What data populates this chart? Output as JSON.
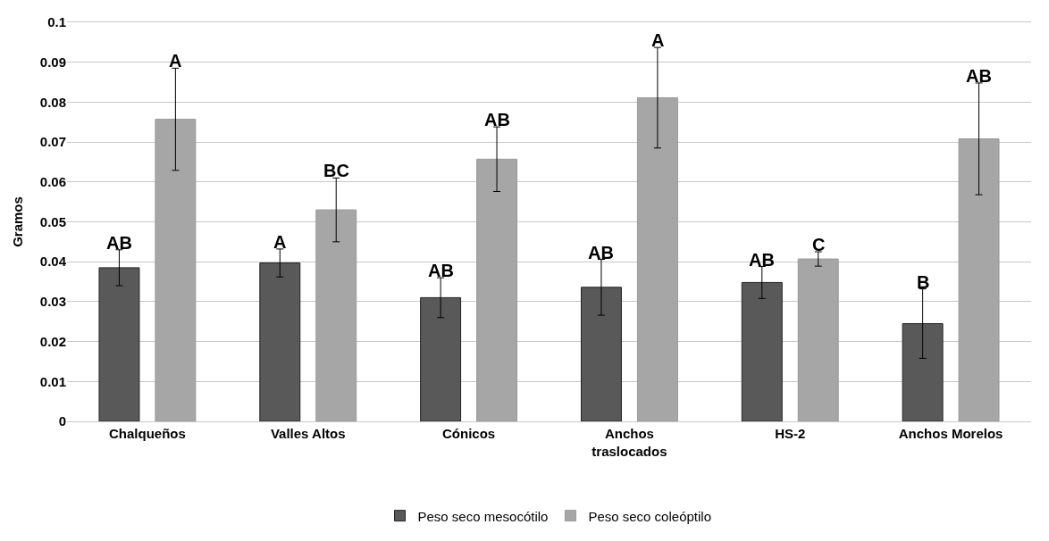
{
  "chart_data": {
    "type": "bar",
    "ylabel": "Gramos",
    "categories": [
      "Chalqueños",
      "Valles Altos",
      "Cónicos",
      "Anchos traslocados",
      "HS-2",
      "Anchos Morelos"
    ],
    "series": [
      {
        "name": "Peso seco mesocótilo",
        "color": "#595959",
        "values": [
          0.0385,
          0.0397,
          0.031,
          0.0336,
          0.0348,
          0.0245
        ],
        "errors": [
          0.0045,
          0.0035,
          0.005,
          0.007,
          0.004,
          0.0087
        ],
        "value_labels": [
          "AB",
          "A",
          "AB",
          "AB",
          "AB",
          "B"
        ]
      },
      {
        "name": "Peso seco coleóptilo",
        "color": "#a6a6a6",
        "values": [
          0.0757,
          0.053,
          0.0657,
          0.0811,
          0.0407,
          0.0708
        ],
        "errors": [
          0.0128,
          0.008,
          0.0081,
          0.0126,
          0.0018,
          0.014
        ],
        "value_labels": [
          "A",
          "BC",
          "AB",
          "A",
          "C",
          "AB"
        ]
      }
    ],
    "ylim": [
      0,
      0.1
    ],
    "yticks": [
      0,
      0.01,
      0.02,
      0.03,
      0.04,
      0.05,
      0.06,
      0.07,
      0.08,
      0.09,
      0.1
    ],
    "grid": "y",
    "legend": "bottom"
  }
}
